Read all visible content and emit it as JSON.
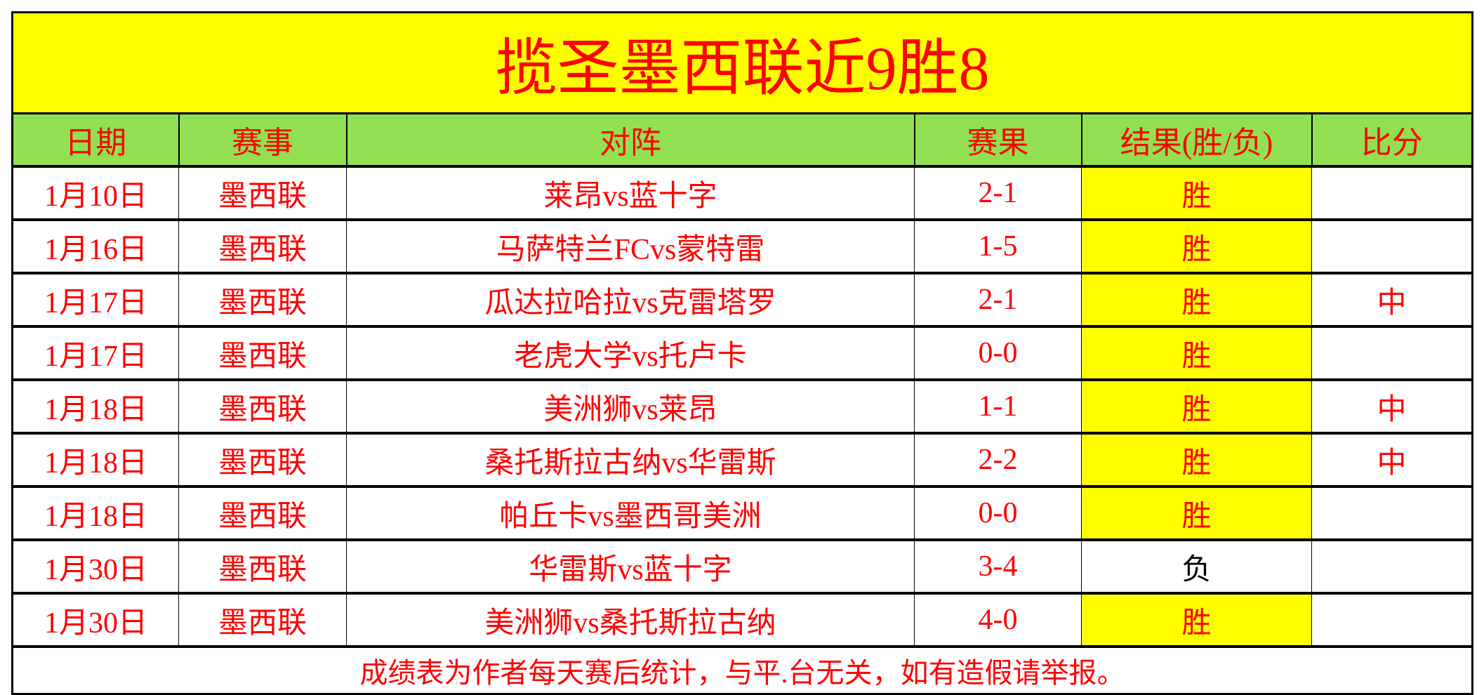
{
  "title": "揽圣墨西联近9胜8",
  "headers": [
    "日期",
    "赛事",
    "对阵",
    "赛果",
    "结果(胜/负)",
    "比分"
  ],
  "rows": [
    {
      "date": "1月10日",
      "league": "墨西联",
      "match": "莱昂vs蓝十字",
      "score": "2-1",
      "result": "胜",
      "bifen": ""
    },
    {
      "date": "1月16日",
      "league": "墨西联",
      "match": "马萨特兰FCvs蒙特雷",
      "score": "1-5",
      "result": "胜",
      "bifen": ""
    },
    {
      "date": "1月17日",
      "league": "墨西联",
      "match": "瓜达拉哈拉vs克雷塔罗",
      "score": "2-1",
      "result": "胜",
      "bifen": "中"
    },
    {
      "date": "1月17日",
      "league": "墨西联",
      "match": "老虎大学vs托卢卡",
      "score": "0-0",
      "result": "胜",
      "bifen": ""
    },
    {
      "date": "1月18日",
      "league": "墨西联",
      "match": "美洲狮vs莱昂",
      "score": "1-1",
      "result": "胜",
      "bifen": "中"
    },
    {
      "date": "1月18日",
      "league": "墨西联",
      "match": "桑托斯拉古纳vs华雷斯",
      "score": "2-2",
      "result": "胜",
      "bifen": "中"
    },
    {
      "date": "1月18日",
      "league": "墨西联",
      "match": "帕丘卡vs墨西哥美洲",
      "score": "0-0",
      "result": "胜",
      "bifen": ""
    },
    {
      "date": "1月30日",
      "league": "墨西联",
      "match": "华雷斯vs蓝十字",
      "score": "3-4",
      "result": "负",
      "bifen": ""
    },
    {
      "date": "1月30日",
      "league": "墨西联",
      "match": "美洲狮vs桑托斯拉古纳",
      "score": "4-0",
      "result": "胜",
      "bifen": ""
    }
  ],
  "footer": "成绩表为作者每天赛后统计，与平.台无关，如有造假请举报。",
  "colors": {
    "title_bg": "#ffff00",
    "header_bg": "#92e052",
    "text": "#ff0000",
    "win_bg": "#ffff00",
    "loss_text": "#000000"
  }
}
